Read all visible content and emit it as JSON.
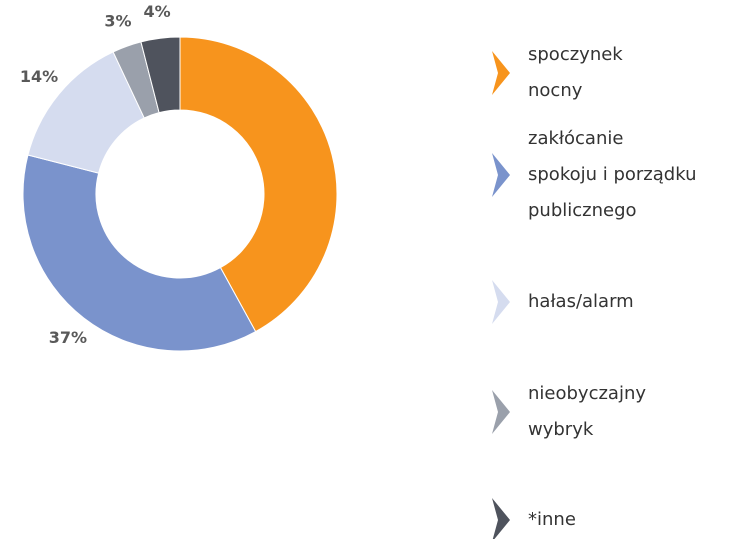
{
  "chart_data": {
    "type": "donut",
    "categories": [
      "spoczynek\nnocny",
      "zakłócanie\nspokoju i porządku\npublicznego",
      "hałas/alarm",
      "nieobyczajny\nwybryk",
      "*inne"
    ],
    "values": [
      42,
      37,
      14,
      3,
      4
    ],
    "value_labels": [
      null,
      "37%",
      "14%",
      "3%",
      "4%"
    ],
    "colors": [
      "#f7941d",
      "#7a93cc",
      "#d5dcef",
      "#9aa0ab",
      "#4f535d"
    ]
  }
}
